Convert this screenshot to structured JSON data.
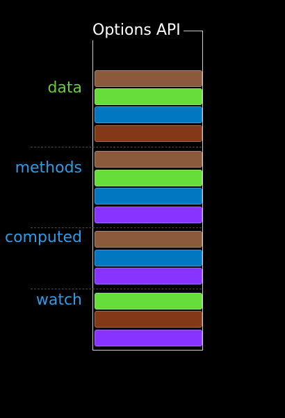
{
  "title": "Options API",
  "colors": {
    "label_data": "#66cc3a",
    "label_other": "#2d9be6",
    "brown": "#8b5a3c",
    "green": "#66dd3a",
    "blue": "#0077c0",
    "rust": "#833818",
    "purple": "#8833ff"
  },
  "sections": [
    {
      "name": "data",
      "label_color": "label_data",
      "blocks": [
        "brown",
        "green",
        "blue",
        "rust"
      ]
    },
    {
      "name": "methods",
      "label_color": "label_other",
      "blocks": [
        "brown",
        "green",
        "blue",
        "purple"
      ]
    },
    {
      "name": "computed",
      "label_color": "label_other",
      "blocks": [
        "brown",
        "blue",
        "purple"
      ]
    },
    {
      "name": "watch",
      "label_color": "label_other",
      "blocks": [
        "green",
        "rust",
        "purple"
      ]
    }
  ]
}
